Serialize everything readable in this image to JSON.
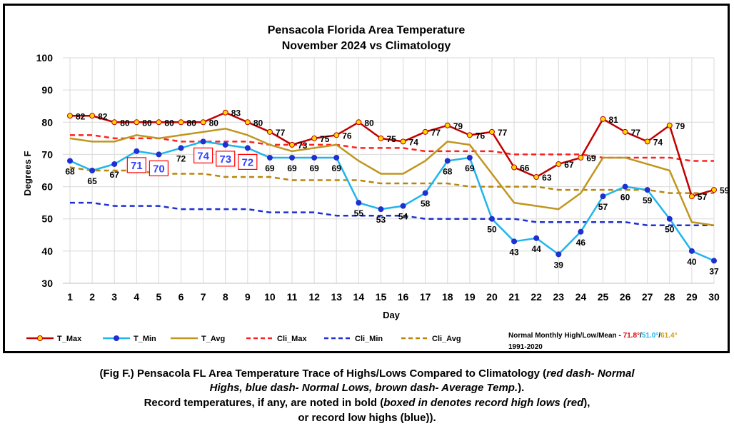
{
  "chart_data": {
    "type": "line",
    "title_line1": "Pensacola Florida Area Temperature",
    "title_line2": "November 2024 vs Climatology",
    "xlabel": "Day",
    "ylabel": "Degrees F",
    "ylim": [
      30,
      100
    ],
    "yticks": [
      30,
      40,
      50,
      60,
      70,
      80,
      90,
      100
    ],
    "x": [
      1,
      2,
      3,
      4,
      5,
      6,
      7,
      8,
      9,
      10,
      11,
      12,
      13,
      14,
      15,
      16,
      17,
      18,
      19,
      20,
      21,
      22,
      23,
      24,
      25,
      26,
      27,
      28,
      29,
      30
    ],
    "grid": true,
    "legend_position": "bottom",
    "series": [
      {
        "name": "T_Max",
        "color": "#c00000",
        "marker": "#ffd700",
        "style": "solid",
        "values": [
          82,
          82,
          80,
          80,
          80,
          80,
          80,
          83,
          80,
          77,
          73,
          75,
          76,
          80,
          75,
          74,
          77,
          79,
          76,
          77,
          66,
          63,
          67,
          69,
          81,
          77,
          74,
          79,
          57,
          59
        ]
      },
      {
        "name": "T_Min",
        "color": "#1fb5ec",
        "marker": "#1f2fd0",
        "style": "solid",
        "values": [
          68,
          65,
          67,
          71,
          70,
          72,
          74,
          73,
          72,
          69,
          69,
          69,
          69,
          55,
          53,
          54,
          58,
          68,
          69,
          50,
          43,
          44,
          39,
          46,
          57,
          60,
          59,
          50,
          40,
          37
        ]
      },
      {
        "name": "T_Avg",
        "color": "#c0961e",
        "style": "solid",
        "values": [
          75,
          74,
          74,
          76,
          75,
          76,
          77,
          78,
          76,
          73,
          71,
          72,
          73,
          68,
          64,
          64,
          68,
          74,
          73,
          64,
          55,
          54,
          53,
          58,
          69,
          69,
          67,
          65,
          49,
          48
        ]
      },
      {
        "name": "Cli_Max",
        "color": "#ff2020",
        "style": "dash",
        "values": [
          76,
          76,
          75,
          75,
          75,
          74,
          74,
          74,
          74,
          73,
          73,
          73,
          73,
          72,
          72,
          72,
          71,
          71,
          71,
          71,
          70,
          70,
          70,
          70,
          69,
          69,
          69,
          69,
          68,
          68
        ]
      },
      {
        "name": "Cli_Min",
        "color": "#1f2fd0",
        "style": "dash",
        "values": [
          55,
          55,
          54,
          54,
          54,
          53,
          53,
          53,
          53,
          52,
          52,
          52,
          51,
          51,
          51,
          51,
          50,
          50,
          50,
          50,
          50,
          49,
          49,
          49,
          49,
          49,
          48,
          48,
          48,
          48
        ]
      },
      {
        "name": "Cli_Avg",
        "color": "#b8860b",
        "style": "dash",
        "values": [
          66,
          65,
          65,
          65,
          64,
          64,
          64,
          63,
          63,
          63,
          62,
          62,
          62,
          62,
          61,
          61,
          61,
          61,
          60,
          60,
          60,
          60,
          59,
          59,
          59,
          59,
          59,
          58,
          58,
          58
        ]
      }
    ],
    "tmax_labels": [
      {
        "day": 1,
        "text": "82"
      },
      {
        "day": 2,
        "text": "82"
      },
      {
        "day": 3,
        "text": "80"
      },
      {
        "day": 4,
        "text": "80"
      },
      {
        "day": 5,
        "text": "80"
      },
      {
        "day": 6,
        "text": "80"
      },
      {
        "day": 7,
        "text": "80"
      },
      {
        "day": 8,
        "text": "83"
      },
      {
        "day": 9,
        "text": "80"
      },
      {
        "day": 10,
        "text": "77"
      },
      {
        "day": 11,
        "text": "73"
      },
      {
        "day": 12,
        "text": "75"
      },
      {
        "day": 13,
        "text": "76"
      },
      {
        "day": 14,
        "text": "80"
      },
      {
        "day": 15,
        "text": "75"
      },
      {
        "day": 16,
        "text": "74"
      },
      {
        "day": 17,
        "text": "77"
      },
      {
        "day": 18,
        "text": "79"
      },
      {
        "day": 19,
        "text": "76"
      },
      {
        "day": 20,
        "text": "77"
      },
      {
        "day": 21,
        "text": "66"
      },
      {
        "day": 22,
        "text": "63"
      },
      {
        "day": 23,
        "text": "67"
      },
      {
        "day": 24,
        "text": "69"
      },
      {
        "day": 25,
        "text": "81"
      },
      {
        "day": 26,
        "text": "77"
      },
      {
        "day": 27,
        "text": "74"
      },
      {
        "day": 28,
        "text": "79"
      },
      {
        "day": 29,
        "text": "57"
      },
      {
        "day": 30,
        "text": "59"
      }
    ],
    "tmin_labels": [
      {
        "day": 1,
        "text": "68"
      },
      {
        "day": 2,
        "text": "65"
      },
      {
        "day": 3,
        "text": "67"
      },
      {
        "day": 6,
        "text": "72"
      },
      {
        "day": 10,
        "text": "69"
      },
      {
        "day": 11,
        "text": "69"
      },
      {
        "day": 12,
        "text": "69"
      },
      {
        "day": 13,
        "text": "69"
      },
      {
        "day": 14,
        "text": "55"
      },
      {
        "day": 15,
        "text": "53"
      },
      {
        "day": 16,
        "text": "54"
      },
      {
        "day": 17,
        "text": "58"
      },
      {
        "day": 18,
        "text": "68"
      },
      {
        "day": 19,
        "text": "69"
      },
      {
        "day": 20,
        "text": "50"
      },
      {
        "day": 21,
        "text": "43"
      },
      {
        "day": 22,
        "text": "44"
      },
      {
        "day": 23,
        "text": "39"
      },
      {
        "day": 24,
        "text": "46"
      },
      {
        "day": 25,
        "text": "57"
      },
      {
        "day": 26,
        "text": "60"
      },
      {
        "day": 27,
        "text": "59"
      },
      {
        "day": 28,
        "text": "50"
      },
      {
        "day": 29,
        "text": "40"
      },
      {
        "day": 30,
        "text": "37"
      }
    ],
    "record_labels": [
      {
        "day": 4,
        "value": 71,
        "text": "71"
      },
      {
        "day": 5,
        "value": 70,
        "text": "70"
      },
      {
        "day": 7,
        "value": 74,
        "text": "74"
      },
      {
        "day": 8,
        "value": 73,
        "text": "73"
      },
      {
        "day": 9,
        "value": 72,
        "text": "72"
      }
    ],
    "normals_note": {
      "prefix": "Normal Monthly High/Low/Mean - ",
      "high": "71.8°",
      "high_color": "#e00000",
      "low": "51.0°",
      "low_color": "#1fb5ec",
      "mean": "61.4°",
      "mean_color": "#d4a017",
      "sep": "/",
      "period": "1991-2020"
    }
  },
  "caption": {
    "l1_a": "(Fig F.) Pensacola FL Area Temperature Trace of Highs/Lows Compared to Climatology (",
    "l1_i": "red dash- Normal",
    "l2_i": "Highs, blue dash- Normal Lows, brown dash- Average Temp.",
    "l2_b": ").",
    "l3_a": "Record temperatures, if any, are noted in bold (",
    "l3_i": "boxed in denotes record high lows (red",
    "l3_b": "),",
    "l4": "or record low highs (blue))."
  }
}
